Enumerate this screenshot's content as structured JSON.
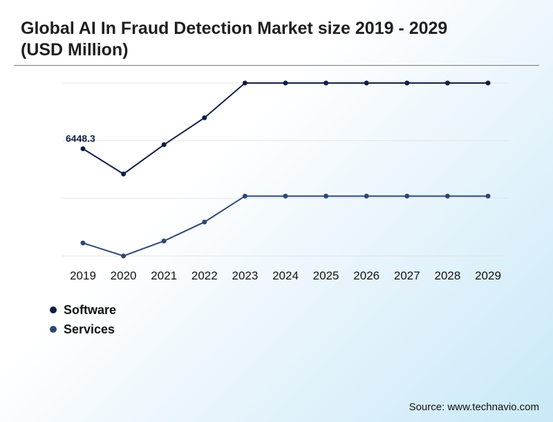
{
  "title": "Global AI In Fraud Detection Market size 2019 - 2029 (USD Million)",
  "source": "Source: www.technavio.com",
  "colors": {
    "software": "#0f1f45",
    "services": "#2e4676",
    "grid": "#e4e4e4"
  },
  "legend": [
    {
      "name": "Software",
      "color": "#0f1f45"
    },
    {
      "name": "Services",
      "color": "#2e4676"
    }
  ],
  "chart_data": {
    "type": "line",
    "x": [
      "2019",
      "2020",
      "2021",
      "2022",
      "2023",
      "2024",
      "2025",
      "2026",
      "2027",
      "2028",
      "2029"
    ],
    "series": [
      {
        "name": "Software",
        "values": [
          6448.3,
          4930,
          6690,
          8310,
          10400,
          10400,
          10400,
          10400,
          10400,
          10400,
          10400
        ],
        "point_labels": [
          "6448.3",
          "",
          "",
          "",
          "",
          "",
          "",
          "",
          "",
          "",
          ""
        ]
      },
      {
        "name": "Services",
        "values": [
          780,
          0,
          900,
          2040,
          3600,
          3600,
          3600,
          3600,
          3600,
          3600,
          3600
        ]
      }
    ],
    "ylim": [
      0,
      10400
    ],
    "grid": true,
    "legend_position": "bottom-left"
  }
}
